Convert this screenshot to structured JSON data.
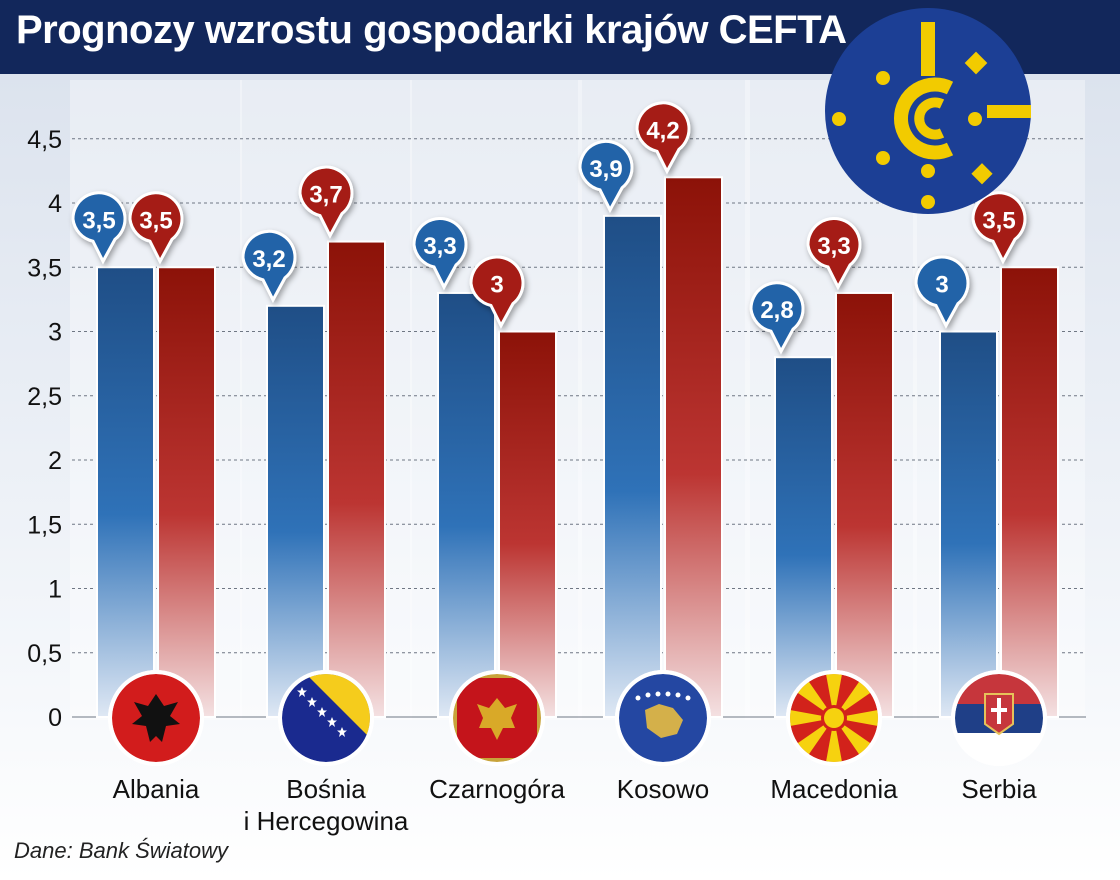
{
  "title": "Prognozy wzrostu gospodarki krajów CEFTA",
  "source": "Dane: Bank Światowy",
  "colors": {
    "header_bg": "#12275b",
    "blue": "#1f5a9a",
    "red": "#9a1a12",
    "logo_blue": "#1c3f95",
    "logo_yellow": "#f2cb00"
  },
  "icons": [
    "cefta-logo",
    "albania-flag",
    "bosnia-flag",
    "montenegro-flag",
    "kosovo-flag",
    "macedonia-flag",
    "serbia-flag"
  ],
  "chart_data": {
    "type": "bar",
    "categories": [
      "Albania",
      "Bośnia i Hercegowina",
      "Czarnogóra",
      "Kosowo",
      "Macedonia",
      "Serbia"
    ],
    "category_lines": [
      [
        "Albania"
      ],
      [
        "Bośnia",
        "i Hercegowina"
      ],
      [
        "Czarnogóra"
      ],
      [
        "Kosowo"
      ],
      [
        "Macedonia"
      ],
      [
        "Serbia"
      ]
    ],
    "series": [
      {
        "values": [
          3.5,
          3.2,
          3.3,
          3.9,
          2.8,
          3.0
        ],
        "color": "#1f5a9a",
        "value_labels": [
          "3,5",
          "3,2",
          "3,3",
          "3,9",
          "2,8",
          "3"
        ]
      },
      {
        "values": [
          3.5,
          3.7,
          3.0,
          4.2,
          3.3,
          3.5
        ],
        "color": "#9a1a12",
        "value_labels": [
          "3,5",
          "3,7",
          "3",
          "4,2",
          "3,3",
          "3,5"
        ]
      }
    ],
    "ylim": [
      0,
      4.5
    ],
    "yticks": [
      0,
      0.5,
      1,
      1.5,
      2,
      2.5,
      3,
      3.5,
      4,
      4.5
    ],
    "ytick_labels": [
      "0",
      "0,5",
      "1",
      "1,5",
      "2",
      "2,5",
      "3",
      "3,5",
      "4",
      "4,5"
    ],
    "grid": true,
    "xlabel": "",
    "ylabel": ""
  }
}
